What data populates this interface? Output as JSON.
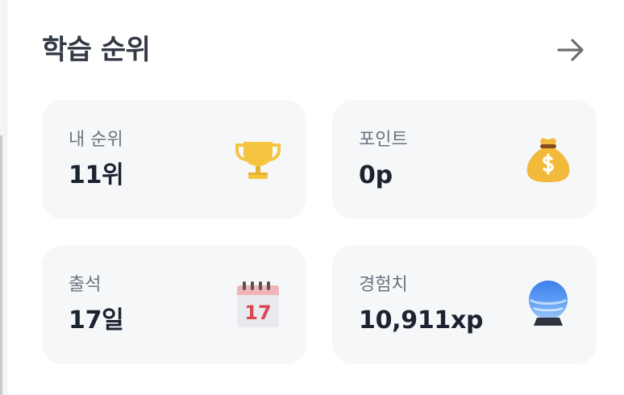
{
  "header": {
    "title": "학습 순위",
    "more_icon": "arrow-right-icon"
  },
  "cards": [
    {
      "label": "내 순위",
      "value": "11위",
      "icon": "trophy-icon"
    },
    {
      "label": "포인트",
      "value": "0p",
      "icon": "money-bag-icon"
    },
    {
      "label": "출석",
      "value": "17일",
      "icon": "calendar-icon",
      "icon_text": "17"
    },
    {
      "label": "경험치",
      "value": "10,911xp",
      "icon": "crystal-ball-icon"
    }
  ],
  "colors": {
    "title": "#333a45",
    "label": "#6b7380",
    "value": "#1c2330",
    "card_bg": "#f6f7f9",
    "trophy": "#f5c542",
    "calendar_accent": "#d9464f",
    "orb": "#4a8ff0"
  }
}
